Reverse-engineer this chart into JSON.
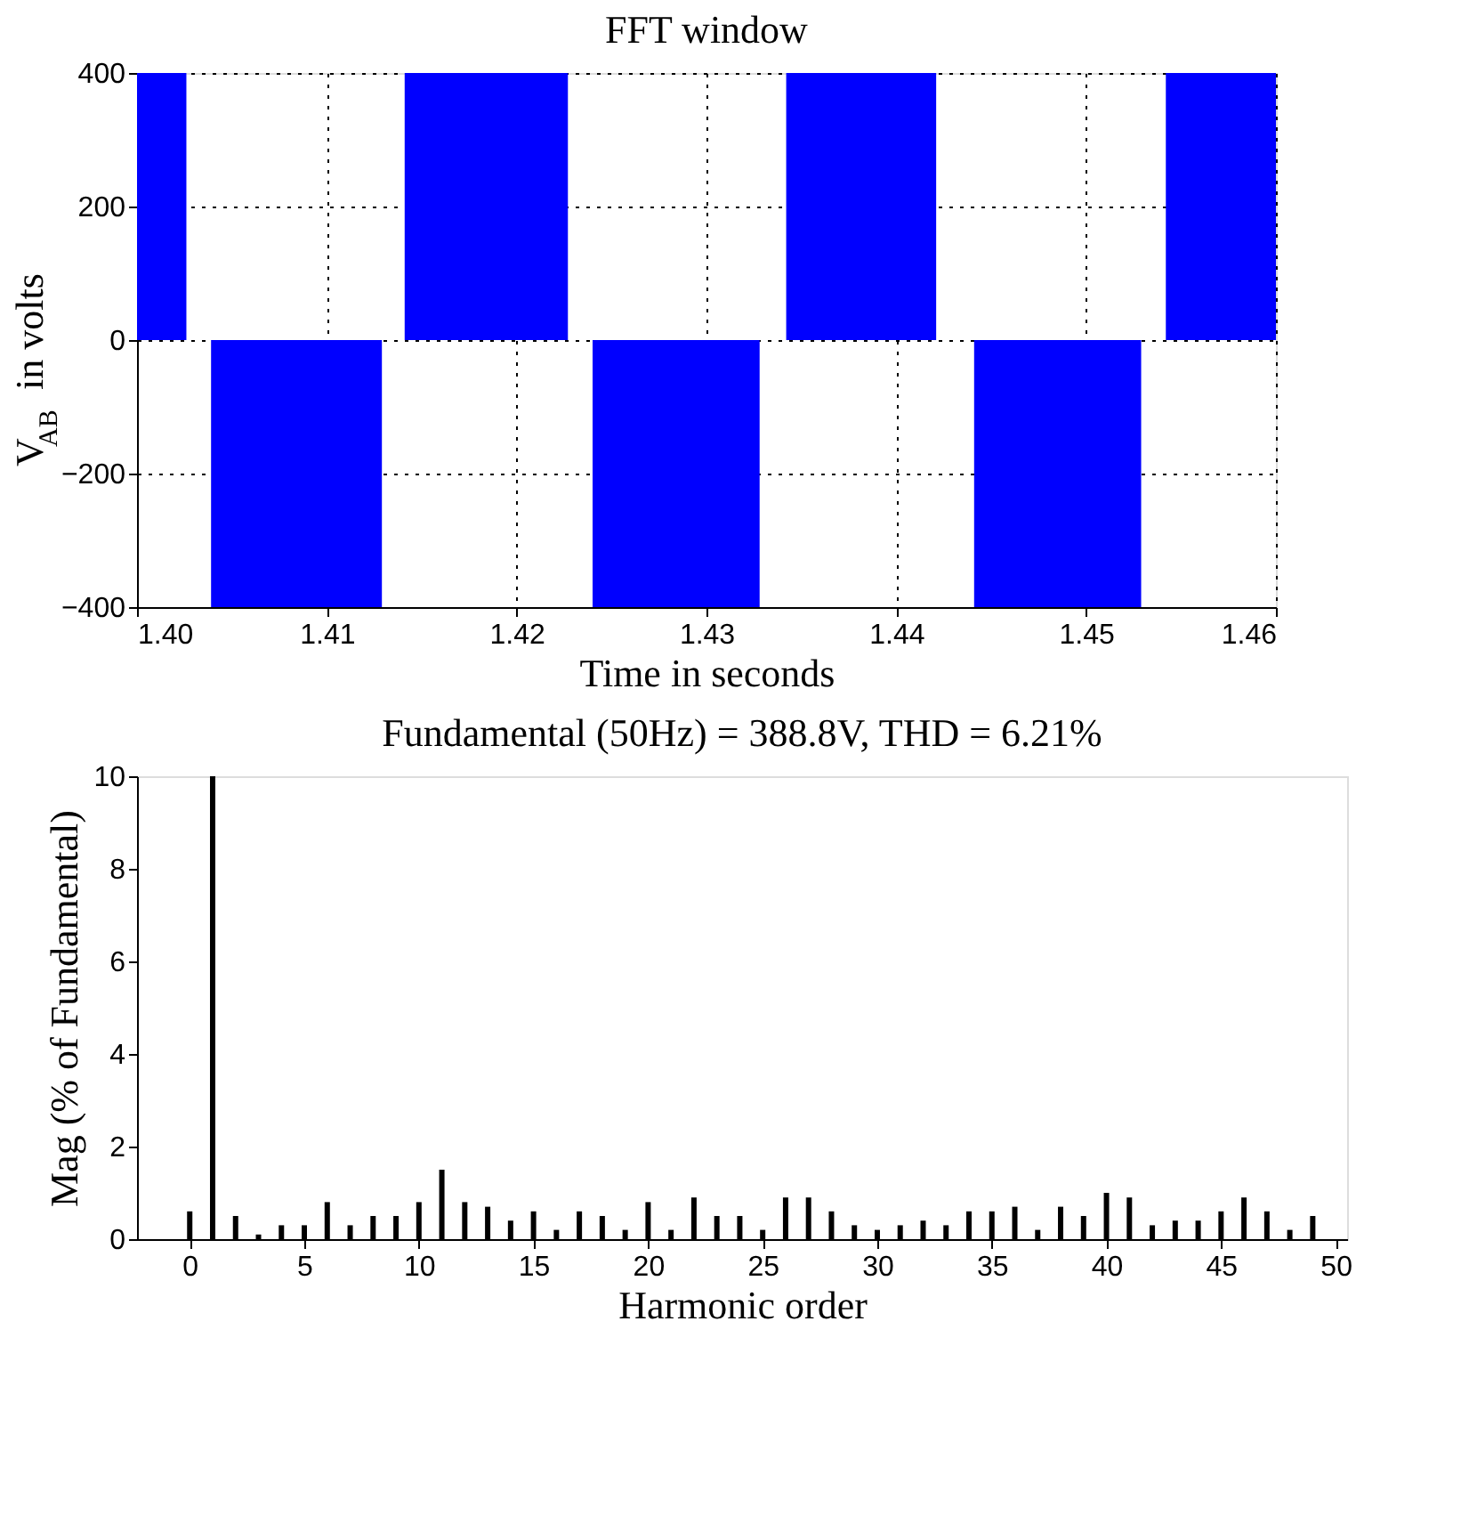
{
  "chart_data": [
    {
      "type": "area",
      "title": "FFT window",
      "xlabel": "Time in seconds",
      "ylabel": "V$_{AB}$ in volts",
      "x": [
        1.4,
        1.4026,
        1.4039,
        1.4129,
        1.4141,
        1.4227,
        1.424,
        1.4328,
        1.4342,
        1.4421,
        1.4441,
        1.4529,
        1.4542,
        1.46
      ],
      "series": [
        {
          "color": "#0000ff",
          "values": [
            400,
            0,
            -400,
            0,
            400,
            0,
            -400,
            0,
            400,
            0,
            -400,
            0,
            400,
            400
          ]
        }
      ],
      "xlim": [
        1.4,
        1.46
      ],
      "xticks": [
        {
          "value": 1.4,
          "label": "1.40"
        },
        1.41,
        1.42,
        1.43,
        1.44,
        1.45,
        1.46
      ],
      "ylim": [
        -400,
        400
      ],
      "yticks": [
        -400,
        -200,
        0,
        200,
        400
      ],
      "grid": true,
      "legend": false
    },
    {
      "type": "bar",
      "title": "Fundamental (50Hz) = 388.8V, THD = 6.21%",
      "xlabel": "Harmonic order",
      "ylabel": "Mag (% of Fundamental)",
      "x": [
        0,
        1,
        2,
        3,
        4,
        5,
        6,
        7,
        8,
        9,
        10,
        11,
        12,
        13,
        14,
        15,
        16,
        17,
        18,
        19,
        20,
        21,
        22,
        23,
        24,
        25,
        26,
        27,
        28,
        29,
        30,
        31,
        32,
        33,
        34,
        35,
        36,
        37,
        38,
        39,
        40,
        41,
        42,
        43,
        44,
        45,
        46,
        47,
        48,
        49
      ],
      "series": [
        {
          "color": "#000000",
          "values": [
            0.6,
            10,
            0.5,
            0.1,
            0.3,
            0.3,
            0.8,
            0.3,
            0.5,
            0.5,
            0.8,
            1.5,
            0.8,
            0.7,
            0.4,
            0.6,
            0.2,
            0.6,
            0.5,
            0.2,
            0.8,
            0.2,
            0.9,
            0.5,
            0.5,
            0.2,
            0.9,
            0.9,
            0.6,
            0.3,
            0.2,
            0.3,
            0.4,
            0.3,
            0.6,
            0.6,
            0.7,
            0.2,
            0.7,
            0.5,
            1.0,
            0.9,
            0.3,
            0.4,
            0.4,
            0.6,
            0.9,
            0.6,
            0.2,
            0.5
          ]
        }
      ],
      "xlim": [
        -2.3,
        50.5
      ],
      "xticks": [
        0,
        5,
        10,
        15,
        20,
        25,
        30,
        35,
        40,
        45,
        50
      ],
      "ylim": [
        0,
        10
      ],
      "yticks": [
        0,
        2,
        4,
        6,
        8,
        10
      ],
      "grid": false,
      "legend": false
    }
  ]
}
